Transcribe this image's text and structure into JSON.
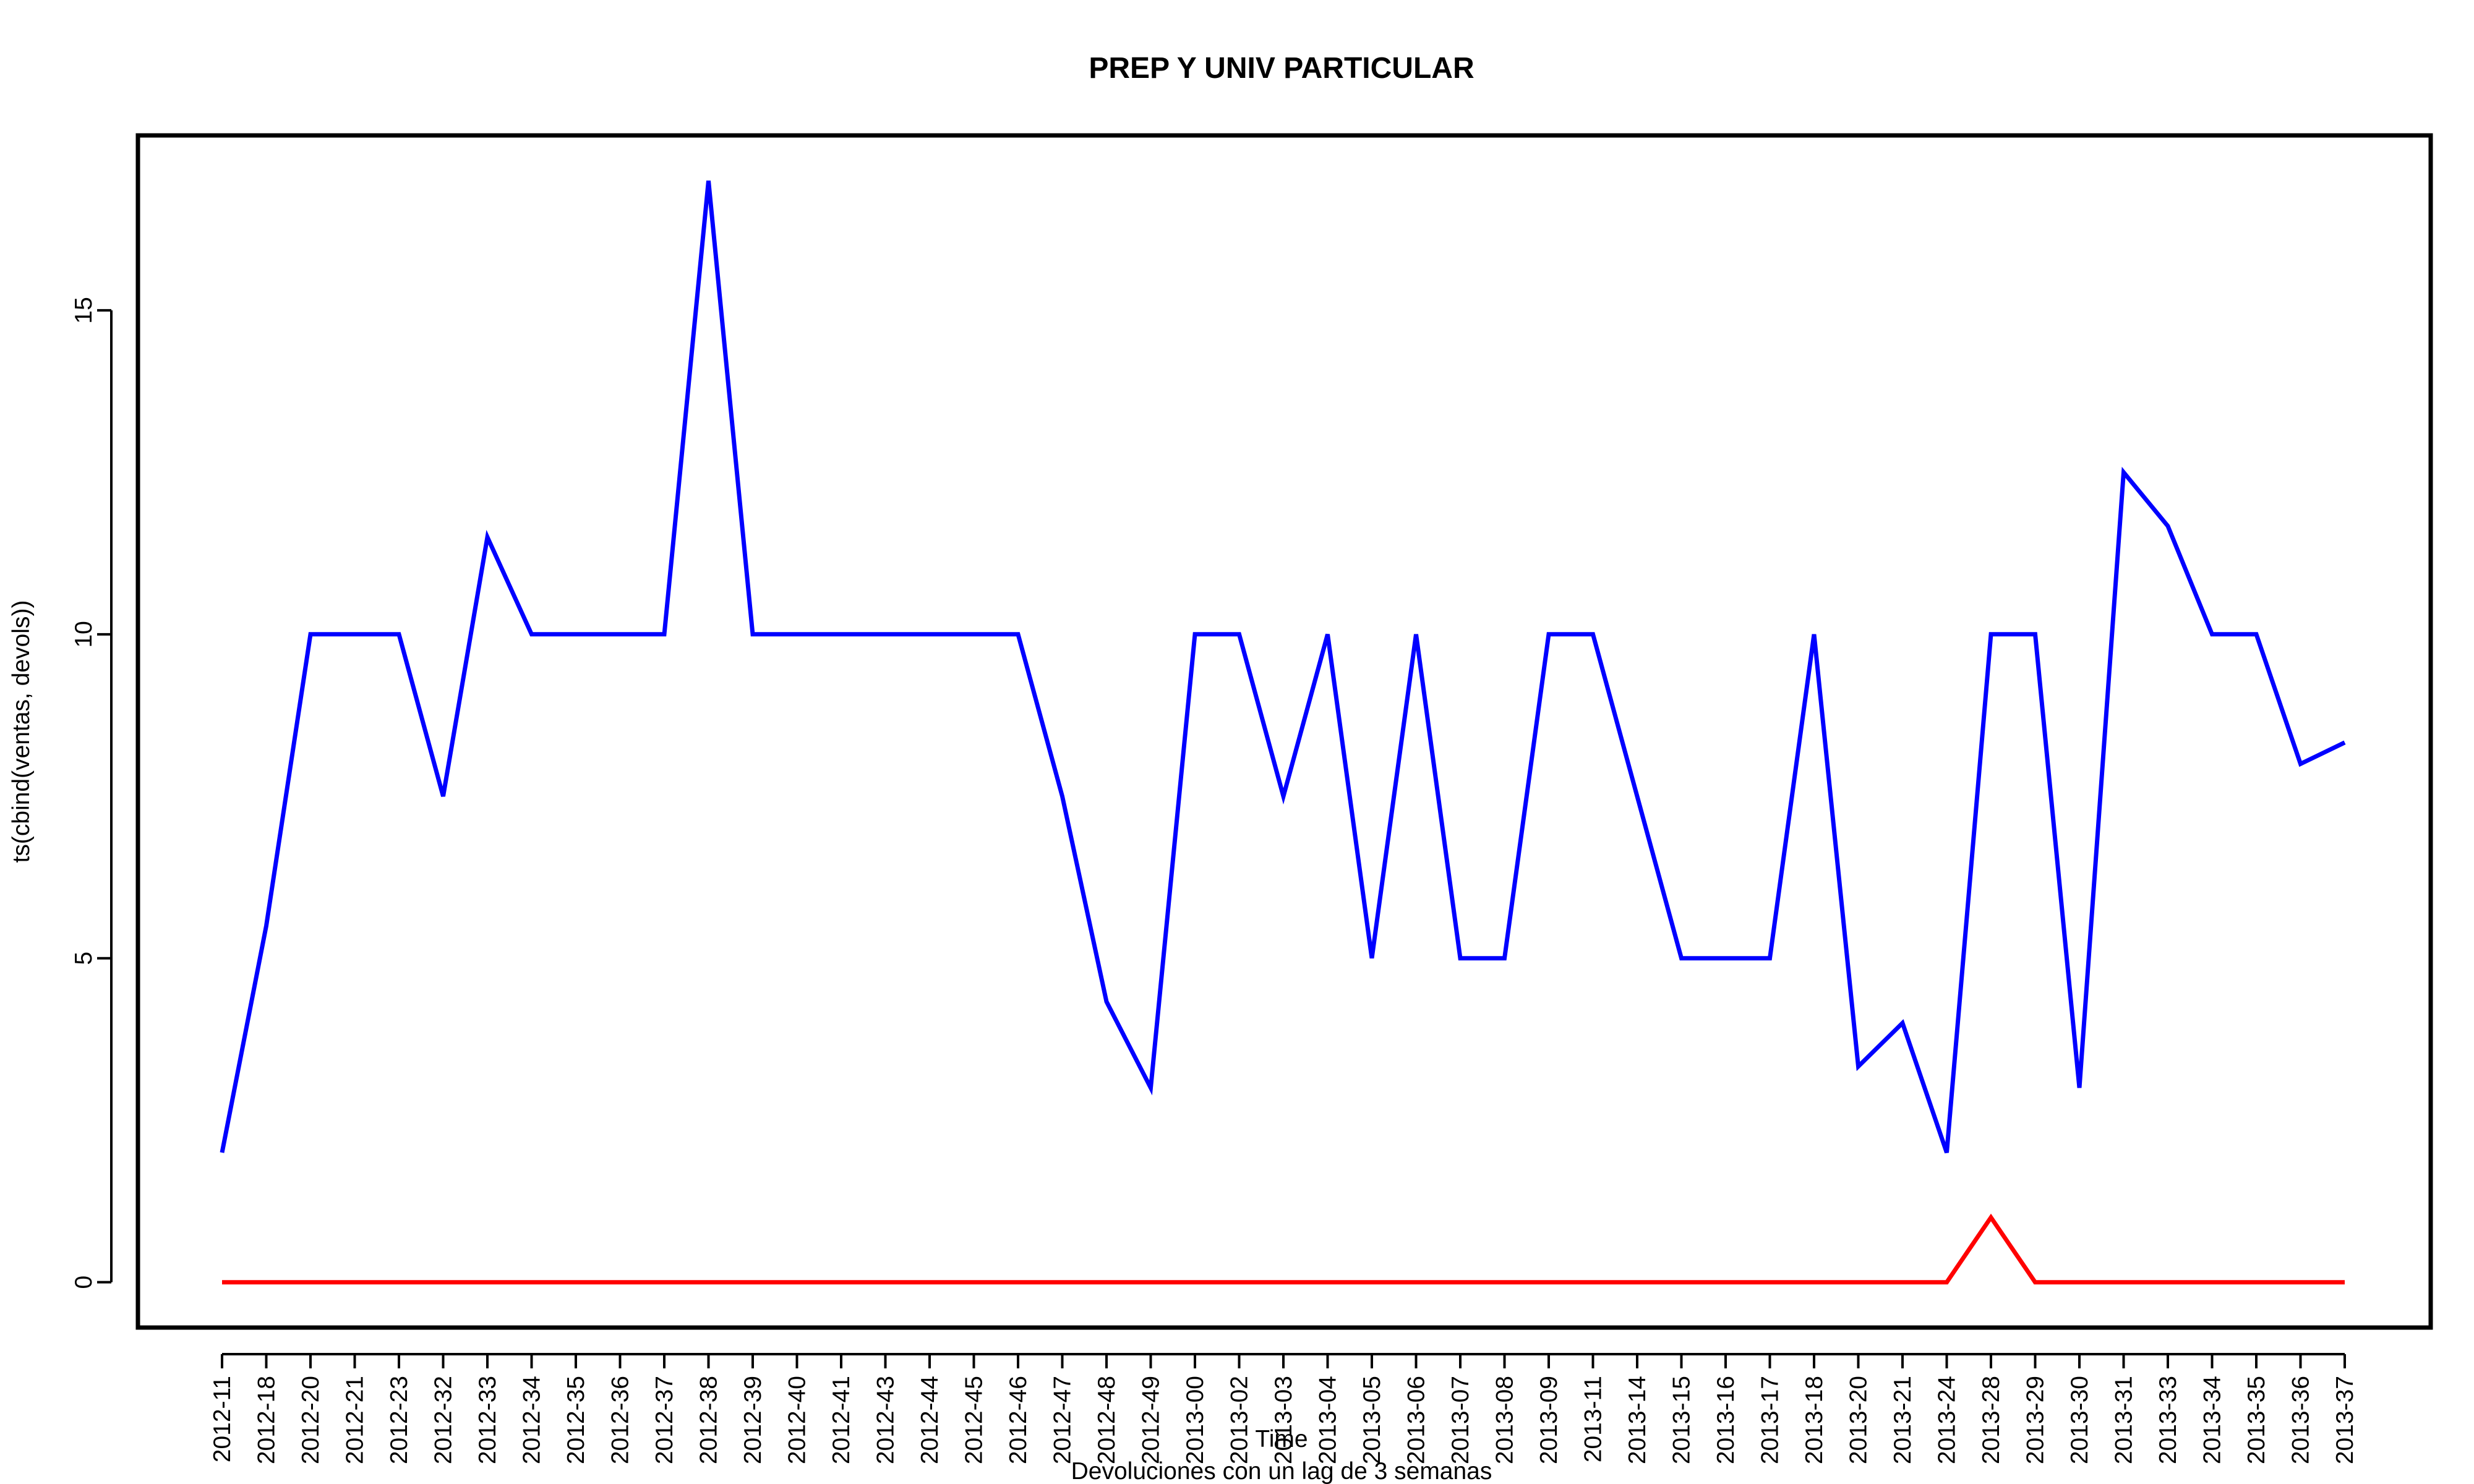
{
  "chart_data": {
    "type": "line",
    "title": "PREP Y UNIV PARTICULAR",
    "xlabel": "Time",
    "ylabel": "ts(cbind(ventas, devols))",
    "subtitle": "Devoluciones con un lag de 3 semanas",
    "ylim": [
      -0.7,
      17.7
    ],
    "yticks": [
      0,
      5,
      10,
      15
    ],
    "grid": false,
    "legend": "none",
    "categories": [
      "2012-11",
      "2012-18",
      "2012-20",
      "2012-21",
      "2012-23",
      "2012-32",
      "2012-33",
      "2012-34",
      "2012-35",
      "2012-36",
      "2012-37",
      "2012-38",
      "2012-39",
      "2012-40",
      "2012-41",
      "2012-43",
      "2012-44",
      "2012-45",
      "2012-46",
      "2012-47",
      "2012-48",
      "2012-49",
      "2013-00",
      "2013-02",
      "2013-03",
      "2013-04",
      "2013-05",
      "2013-06",
      "2013-07",
      "2013-08",
      "2013-09",
      "2013-11",
      "2013-14",
      "2013-15",
      "2013-16",
      "2013-17",
      "2013-18",
      "2013-20",
      "2013-21",
      "2013-24",
      "2013-28",
      "2013-29",
      "2013-30",
      "2013-31",
      "2013-33",
      "2013-34",
      "2013-35",
      "2013-36",
      "2013-37"
    ],
    "series": [
      {
        "color": "#0000ff",
        "values": [
          2,
          5.5,
          10,
          10,
          10,
          7.5,
          11.5,
          10,
          10,
          10,
          10,
          17,
          10,
          10,
          10,
          10,
          10,
          10,
          10,
          7.5,
          4.33,
          3,
          10,
          10,
          7.5,
          10,
          5,
          10,
          5,
          5,
          10,
          10,
          7.5,
          5,
          5,
          5,
          10,
          3.33,
          4,
          2,
          10,
          10,
          3,
          12.5,
          11.67,
          10,
          10,
          8,
          8.33
        ]
      },
      {
        "color": "#ff0000",
        "values": [
          0,
          0,
          0,
          0,
          0,
          0,
          0,
          0,
          0,
          0,
          0,
          0,
          0,
          0,
          0,
          0,
          0,
          0,
          0,
          0,
          0,
          0,
          0,
          0,
          0,
          0,
          0,
          0,
          0,
          0,
          0,
          0,
          0,
          0,
          0,
          0,
          0,
          0,
          0,
          0,
          1,
          0,
          0,
          0,
          0,
          0,
          0,
          0,
          0
        ]
      }
    ]
  }
}
